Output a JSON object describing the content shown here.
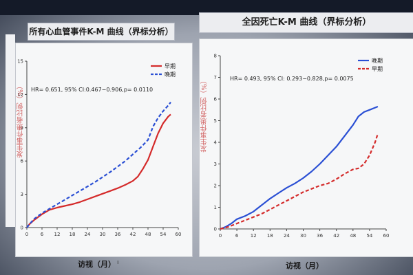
{
  "chart_data": [
    {
      "type": "line",
      "title": "所有心血管事件K-M 曲线（界标分析）",
      "xlabel": "访视（月）",
      "ylabel": "发生事件患者比例（%）",
      "xlim": [
        0,
        60
      ],
      "ylim": [
        0,
        15
      ],
      "xticks": [
        0,
        6,
        12,
        18,
        24,
        30,
        36,
        42,
        48,
        54,
        60
      ],
      "yticks": [
        0,
        3,
        6,
        9,
        12,
        15
      ],
      "annotation": "HR= 0.651, 95% CI:0.467−0.906,p= 0.0110",
      "legend_position": "top-right",
      "series": [
        {
          "name": "早期",
          "color": "#d42a2a",
          "dash": "solid",
          "x": [
            0,
            1,
            3,
            6,
            9,
            12,
            15,
            18,
            21,
            24,
            27,
            30,
            33,
            36,
            39,
            42,
            44,
            46,
            48,
            50,
            52,
            54,
            56,
            57
          ],
          "y": [
            0,
            0.3,
            0.7,
            1.2,
            1.6,
            1.8,
            1.95,
            2.1,
            2.3,
            2.55,
            2.8,
            3.05,
            3.3,
            3.55,
            3.85,
            4.2,
            4.6,
            5.3,
            6.1,
            7.3,
            8.5,
            9.4,
            10.0,
            10.2
          ]
        },
        {
          "name": "晚期",
          "color": "#2a4fd4",
          "dash": "dashed",
          "x": [
            0,
            1,
            3,
            6,
            9,
            12,
            15,
            18,
            21,
            24,
            27,
            30,
            33,
            36,
            39,
            42,
            45,
            48,
            50,
            52,
            54,
            56,
            57
          ],
          "y": [
            0,
            0.3,
            0.8,
            1.3,
            1.7,
            2.1,
            2.5,
            2.9,
            3.3,
            3.7,
            4.1,
            4.55,
            5.0,
            5.5,
            6.0,
            6.6,
            7.2,
            7.9,
            9.1,
            9.9,
            10.5,
            11.0,
            11.3
          ]
        }
      ]
    },
    {
      "type": "line",
      "title": "全因死亡K-M 曲线（界标分析）",
      "xlabel": "访视（月）",
      "ylabel": "发生事件患者比例（%）",
      "xlim": [
        0,
        60
      ],
      "ylim": [
        0,
        8
      ],
      "xticks": [
        0,
        6,
        12,
        18,
        24,
        30,
        36,
        42,
        48,
        54,
        60
      ],
      "yticks": [
        0,
        1,
        2,
        3,
        4,
        5,
        6,
        7,
        8
      ],
      "annotation": "HR= 0.493, 95% CI: 0.293−0.828,p= 0.0075",
      "legend_position": "top-right",
      "series": [
        {
          "name": "晚期",
          "color": "#2a4fd4",
          "dash": "solid",
          "x": [
            0,
            2,
            4,
            6,
            9,
            12,
            15,
            18,
            21,
            24,
            27,
            30,
            33,
            36,
            39,
            42,
            45,
            48,
            50,
            52,
            54,
            56,
            57
          ],
          "y": [
            0,
            0.1,
            0.25,
            0.45,
            0.6,
            0.8,
            1.1,
            1.4,
            1.65,
            1.9,
            2.1,
            2.35,
            2.65,
            3.0,
            3.4,
            3.8,
            4.3,
            4.8,
            5.2,
            5.4,
            5.5,
            5.6,
            5.65
          ]
        },
        {
          "name": "早期",
          "color": "#d42a2a",
          "dash": "dashed",
          "x": [
            0,
            3,
            6,
            9,
            12,
            15,
            18,
            21,
            24,
            27,
            30,
            33,
            36,
            39,
            42,
            45,
            48,
            50,
            52,
            54,
            56,
            57
          ],
          "y": [
            0,
            0.1,
            0.25,
            0.4,
            0.55,
            0.7,
            0.9,
            1.1,
            1.3,
            1.5,
            1.7,
            1.85,
            2.0,
            2.1,
            2.3,
            2.55,
            2.75,
            2.8,
            3.0,
            3.4,
            4.0,
            4.4
          ]
        }
      ]
    }
  ]
}
